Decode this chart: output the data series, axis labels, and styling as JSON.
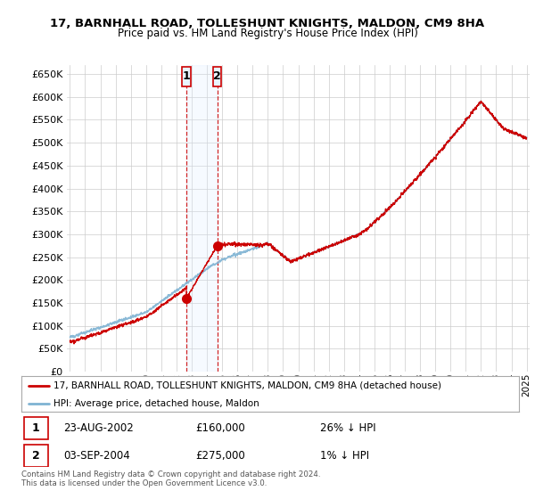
{
  "title": "17, BARNHALL ROAD, TOLLESHUNT KNIGHTS, MALDON, CM9 8HA",
  "subtitle": "Price paid vs. HM Land Registry's House Price Index (HPI)",
  "legend_line1": "17, BARNHALL ROAD, TOLLESHUNT KNIGHTS, MALDON, CM9 8HA (detached house)",
  "legend_line2": "HPI: Average price, detached house, Maldon",
  "transaction1_date": "23-AUG-2002",
  "transaction1_price": "£160,000",
  "transaction1_hpi": "26% ↓ HPI",
  "transaction2_date": "03-SEP-2004",
  "transaction2_price": "£275,000",
  "transaction2_hpi": "1% ↓ HPI",
  "footer": "Contains HM Land Registry data © Crown copyright and database right 2024.\nThis data is licensed under the Open Government Licence v3.0.",
  "hpi_color": "#7fb3d3",
  "price_color": "#cc0000",
  "marker_color": "#cc0000",
  "grid_color": "#cccccc",
  "background_color": "#ffffff",
  "shade_color": "#ddeeff",
  "transaction1_x": 2002.64,
  "transaction1_y": 160000,
  "transaction2_x": 2004.67,
  "transaction2_y": 275000,
  "ylim": [
    0,
    670000
  ],
  "ytick_step": 50000,
  "xlim_start": 1994.8,
  "xlim_end": 2025.2
}
